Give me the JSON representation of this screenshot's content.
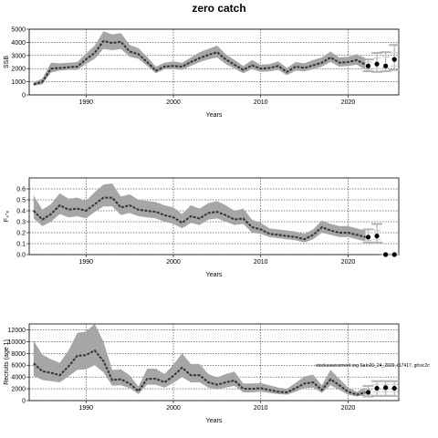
{
  "figure": {
    "title": "zero catch"
  },
  "chart_data": [
    {
      "type": "line",
      "panel": "ssb",
      "ylabel": "SSB",
      "xlabel": "Years",
      "xlim": [
        1983.5,
        2025.8
      ],
      "ylim": [
        0,
        5000
      ],
      "xticks": [
        1990,
        2000,
        2010,
        2020
      ],
      "yticks": [
        0,
        1000,
        2000,
        3000,
        4000,
        5000
      ],
      "grid": true,
      "x": [
        1984,
        1985,
        1986,
        1987,
        1988,
        1989,
        1990,
        1991,
        1992,
        1993,
        1994,
        1995,
        1996,
        1997,
        1998,
        1999,
        2000,
        2001,
        2002,
        2003,
        2004,
        2005,
        2006,
        2007,
        2008,
        2009,
        2010,
        2011,
        2012,
        2013,
        2014,
        2015,
        2016,
        2017,
        2018,
        2019,
        2020,
        2021,
        2022
      ],
      "median": [
        800,
        1000,
        2000,
        2050,
        2100,
        2150,
        2700,
        3200,
        4100,
        3950,
        4050,
        3300,
        3100,
        2500,
        1850,
        2150,
        2200,
        2150,
        2500,
        2800,
        3050,
        3250,
        2700,
        2300,
        1900,
        2250,
        2000,
        2050,
        2200,
        1750,
        2150,
        2050,
        2250,
        2450,
        2850,
        2450,
        2500,
        2650,
        2300
      ],
      "lower": [
        700,
        800,
        1700,
        1850,
        1900,
        1900,
        2350,
        2750,
        3500,
        3400,
        3500,
        2900,
        2750,
        2200,
        1650,
        1950,
        1950,
        1900,
        2200,
        2500,
        2700,
        2850,
        2350,
        2000,
        1650,
        1950,
        1750,
        1800,
        1900,
        1500,
        1850,
        1800,
        1950,
        2150,
        2500,
        2150,
        2200,
        2300,
        1900
      ],
      "upper": [
        950,
        1250,
        2450,
        2400,
        2450,
        2500,
        3150,
        3750,
        4850,
        4600,
        4700,
        3800,
        3550,
        2900,
        2150,
        2450,
        2550,
        2450,
        2850,
        3250,
        3500,
        3750,
        3100,
        2650,
        2200,
        2650,
        2300,
        2350,
        2550,
        2050,
        2500,
        2400,
        2650,
        2850,
        3300,
        2850,
        2900,
        3100,
        2800
      ],
      "forecast": {
        "x": [
          2022.3,
          2023.3,
          2024.3,
          2025.3
        ],
        "y": [
          2200,
          2350,
          2200,
          2700
        ],
        "ci_lower": [
          1800,
          1750,
          1800,
          1900
        ],
        "ci_upper": [
          2700,
          3200,
          3250,
          3800
        ],
        "box_lower": [
          1950,
          2000,
          2050,
          2200
        ],
        "box_upper": [
          2500,
          2800,
          2900,
          3200
        ]
      },
      "color_median": "#333333",
      "color_band": "#a6a6a6"
    },
    {
      "type": "line",
      "panel": "f",
      "ylabel": "F₄-₈",
      "xlabel": "Years",
      "xlim": [
        1983.5,
        2025.8
      ],
      "ylim": [
        0,
        0.7
      ],
      "xticks": [
        1990,
        2000,
        2010,
        2020
      ],
      "yticks": [
        0,
        0.1,
        0.2,
        0.3,
        0.4,
        0.5,
        0.6
      ],
      "ytick_labels": [
        "0.0",
        "0.1",
        "0.2",
        "0.3",
        "0.4",
        "0.5",
        "0.6"
      ],
      "grid": true,
      "x": [
        1984,
        1985,
        1986,
        1987,
        1988,
        1989,
        1990,
        1991,
        1992,
        1993,
        1994,
        1995,
        1996,
        1997,
        1998,
        1999,
        2000,
        2001,
        2002,
        2003,
        2004,
        2005,
        2006,
        2007,
        2008,
        2009,
        2010,
        2011,
        2012,
        2013,
        2014,
        2015,
        2016,
        2017,
        2018,
        2019,
        2020,
        2021,
        2022
      ],
      "median": [
        0.4,
        0.32,
        0.37,
        0.45,
        0.41,
        0.42,
        0.4,
        0.46,
        0.52,
        0.52,
        0.43,
        0.45,
        0.41,
        0.4,
        0.39,
        0.36,
        0.34,
        0.29,
        0.35,
        0.33,
        0.38,
        0.39,
        0.36,
        0.32,
        0.33,
        0.25,
        0.23,
        0.19,
        0.18,
        0.17,
        0.16,
        0.14,
        0.18,
        0.25,
        0.22,
        0.2,
        0.2,
        0.18,
        0.16
      ],
      "lower": [
        0.33,
        0.26,
        0.3,
        0.37,
        0.34,
        0.35,
        0.33,
        0.39,
        0.44,
        0.44,
        0.36,
        0.38,
        0.35,
        0.34,
        0.33,
        0.3,
        0.28,
        0.24,
        0.29,
        0.27,
        0.32,
        0.33,
        0.3,
        0.27,
        0.28,
        0.2,
        0.19,
        0.16,
        0.15,
        0.14,
        0.13,
        0.11,
        0.14,
        0.2,
        0.18,
        0.16,
        0.16,
        0.14,
        0.12
      ],
      "upper": [
        0.54,
        0.41,
        0.46,
        0.56,
        0.51,
        0.52,
        0.49,
        0.57,
        0.64,
        0.65,
        0.53,
        0.55,
        0.5,
        0.49,
        0.48,
        0.45,
        0.43,
        0.37,
        0.45,
        0.42,
        0.47,
        0.49,
        0.45,
        0.4,
        0.42,
        0.32,
        0.29,
        0.24,
        0.23,
        0.22,
        0.21,
        0.19,
        0.23,
        0.31,
        0.28,
        0.26,
        0.26,
        0.24,
        0.22
      ],
      "forecast": {
        "x": [
          2022.3,
          2023.3,
          2024.3,
          2025.3
        ],
        "y": [
          0.16,
          0.17,
          0.0,
          0.0
        ],
        "ci_lower": [
          0.11,
          0.11,
          0.0,
          0.0
        ],
        "ci_upper": [
          0.23,
          0.28,
          0.0,
          0.0
        ],
        "box_lower": [
          0.13,
          0.14,
          0.0,
          0.0
        ],
        "box_upper": [
          0.2,
          0.22,
          0.0,
          0.0
        ]
      },
      "color_median": "#333333",
      "color_band": "#a6a6a6"
    },
    {
      "type": "line",
      "panel": "recruits",
      "ylabel": "Recruits (age 1)",
      "xlabel": "Years",
      "xlim": [
        1983.5,
        2025.8
      ],
      "ylim": [
        0,
        13000
      ],
      "xticks": [
        1990,
        2000,
        2010,
        2020
      ],
      "yticks": [
        0,
        2000,
        4000,
        6000,
        8000,
        10000,
        12000
      ],
      "grid": true,
      "annotation": "stockassessment.org SaIo20_24_2020, r17417, git:ec2c",
      "x": [
        1984,
        1985,
        1986,
        1987,
        1988,
        1989,
        1990,
        1991,
        1992,
        1993,
        1994,
        1995,
        1996,
        1997,
        1998,
        1999,
        2000,
        2001,
        2002,
        2003,
        2004,
        2005,
        2006,
        2007,
        2008,
        2009,
        2010,
        2011,
        2012,
        2013,
        2014,
        2015,
        2016,
        2017,
        2018,
        2019,
        2020,
        2021,
        2022
      ],
      "median": [
        6300,
        5000,
        4700,
        4300,
        5800,
        7600,
        7700,
        8500,
        6700,
        3500,
        3600,
        2900,
        1600,
        3700,
        3700,
        3100,
        4200,
        5600,
        4300,
        4300,
        3100,
        2700,
        3100,
        3400,
        2000,
        2000,
        2100,
        1800,
        1500,
        1400,
        2100,
        2900,
        3100,
        1800,
        3600,
        2600,
        1500,
        1000,
        1400
      ],
      "lower": [
        4200,
        3500,
        3300,
        3100,
        4100,
        5200,
        5300,
        6000,
        4800,
        2500,
        2600,
        2100,
        1100,
        2700,
        2700,
        2200,
        3000,
        4000,
        3100,
        3100,
        2200,
        1900,
        2200,
        2500,
        1400,
        1400,
        1500,
        1300,
        1100,
        1000,
        1500,
        2100,
        2200,
        1300,
        2600,
        1800,
        1000,
        700,
        900
      ],
      "upper": [
        10200,
        7800,
        7000,
        6400,
        8500,
        11500,
        11700,
        13000,
        10000,
        5200,
        5300,
        4300,
        2400,
        5400,
        5400,
        4500,
        6100,
        8000,
        6200,
        6200,
        4500,
        3900,
        4500,
        4900,
        2900,
        2900,
        3000,
        2600,
        2200,
        2000,
        3000,
        4100,
        4400,
        2600,
        5200,
        3700,
        2200,
        1500,
        2200
      ],
      "forecast": {
        "x": [
          2022.3,
          2023.3,
          2024.3,
          2025.3
        ],
        "y": [
          1400,
          2100,
          2200,
          2100
        ],
        "ci_lower": [
          700,
          800,
          800,
          800
        ],
        "ci_upper": [
          2500,
          3300,
          3300,
          3300
        ],
        "box_lower": [
          1000,
          1500,
          1500,
          1500
        ],
        "box_upper": [
          1800,
          2700,
          2700,
          2700
        ]
      },
      "color_median": "#333333",
      "color_band": "#a6a6a6"
    }
  ]
}
